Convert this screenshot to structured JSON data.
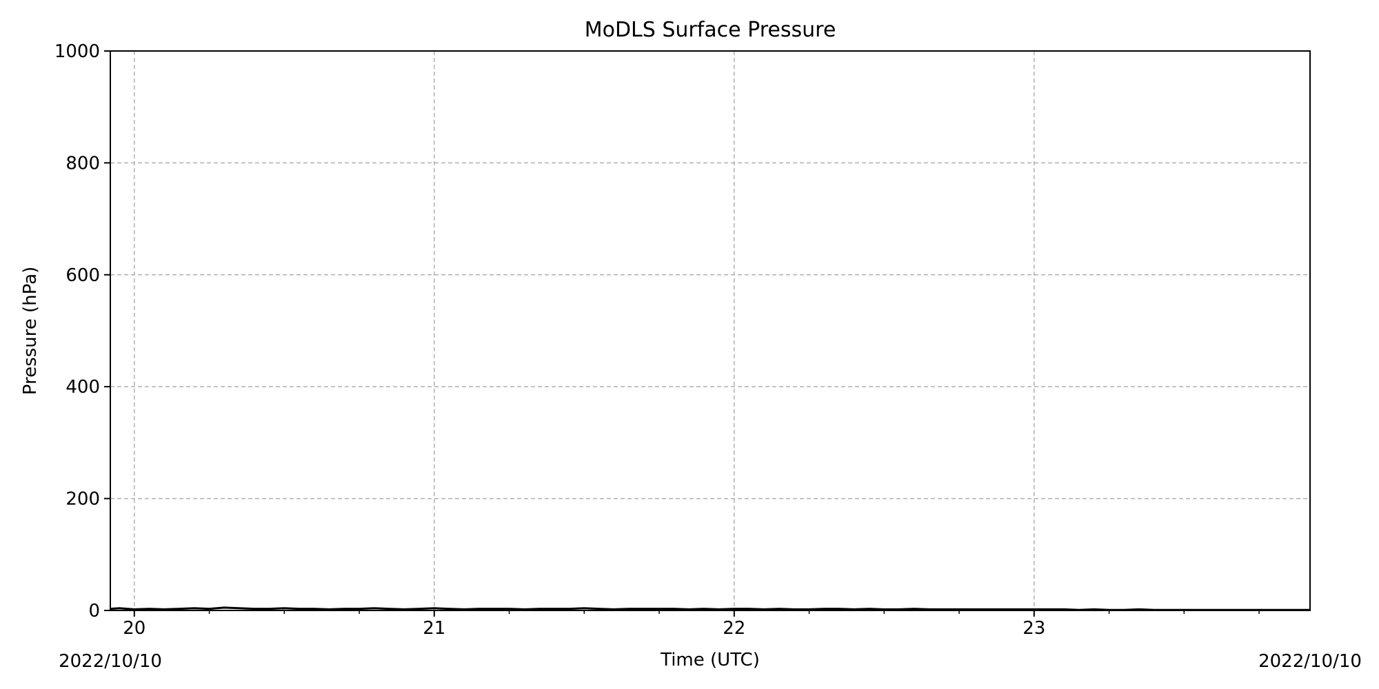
{
  "chart_data": {
    "type": "line",
    "title": "MoDLS Surface Pressure",
    "xlabel": "Time (UTC)",
    "ylabel": "Pressure (hPa)",
    "x_unit": "hour (UTC)",
    "xlim": [
      19.92,
      23.92
    ],
    "ylim": [
      0,
      1000
    ],
    "x_major_ticks": [
      20,
      21,
      22,
      23
    ],
    "x_tick_labels": [
      "20",
      "21",
      "22",
      "23"
    ],
    "x_minor_ticks": [
      20.25,
      20.5,
      20.75,
      21.25,
      21.5,
      21.75,
      22.25,
      22.5,
      22.75,
      23.25,
      23.5,
      23.75
    ],
    "y_ticks": [
      0,
      200,
      400,
      600,
      800,
      1000
    ],
    "y_tick_labels": [
      "0",
      "200",
      "400",
      "600",
      "800",
      "1000"
    ],
    "date_start_label": "2022/10/10",
    "date_end_label": "2022/10/10",
    "grid": true,
    "grid_style": "dashed",
    "legend": "none",
    "line_color": "#000000",
    "grid_color": "#b0b0b0",
    "series": [
      {
        "x": [
          19.92,
          19.95,
          20.0,
          20.05,
          20.1,
          20.15,
          20.2,
          20.25,
          20.3,
          20.35,
          20.4,
          20.45,
          20.5,
          20.55,
          20.6,
          20.65,
          20.7,
          20.75,
          20.8,
          20.85,
          20.9,
          20.95,
          21.0,
          21.05,
          21.1,
          21.15,
          21.2,
          21.25,
          21.3,
          21.35,
          21.4,
          21.45,
          21.5,
          21.55,
          21.6,
          21.65,
          21.7,
          21.75,
          21.8,
          21.85,
          21.9,
          21.95,
          22.0,
          22.05,
          22.1,
          22.15,
          22.2,
          22.25,
          22.3,
          22.35,
          22.4,
          22.45,
          22.5,
          22.55,
          22.6,
          22.65,
          22.7,
          22.75,
          22.8,
          22.85,
          22.9,
          22.95,
          23.0,
          23.05,
          23.1,
          23.15,
          23.2,
          23.25,
          23.3,
          23.35,
          23.4,
          23.45,
          23.5,
          23.55,
          23.6,
          23.65,
          23.7,
          23.75,
          23.8,
          23.85,
          23.92
        ],
        "y": [
          3,
          4,
          2,
          3,
          2,
          3,
          4,
          3,
          5,
          4,
          3,
          3,
          4,
          3,
          3,
          2,
          3,
          3,
          4,
          3,
          2,
          3,
          4,
          3,
          2,
          3,
          3,
          3,
          2,
          3,
          3,
          3,
          4,
          3,
          2,
          3,
          3,
          3,
          3,
          2,
          3,
          2,
          3,
          3,
          2,
          3,
          2,
          2,
          3,
          3,
          2,
          3,
          2,
          2,
          3,
          2,
          2,
          2,
          2,
          2,
          2,
          2,
          2,
          2,
          2,
          1,
          2,
          1,
          1,
          2,
          1,
          1,
          1,
          1,
          1,
          1,
          1,
          1,
          1,
          1,
          1
        ]
      }
    ]
  }
}
